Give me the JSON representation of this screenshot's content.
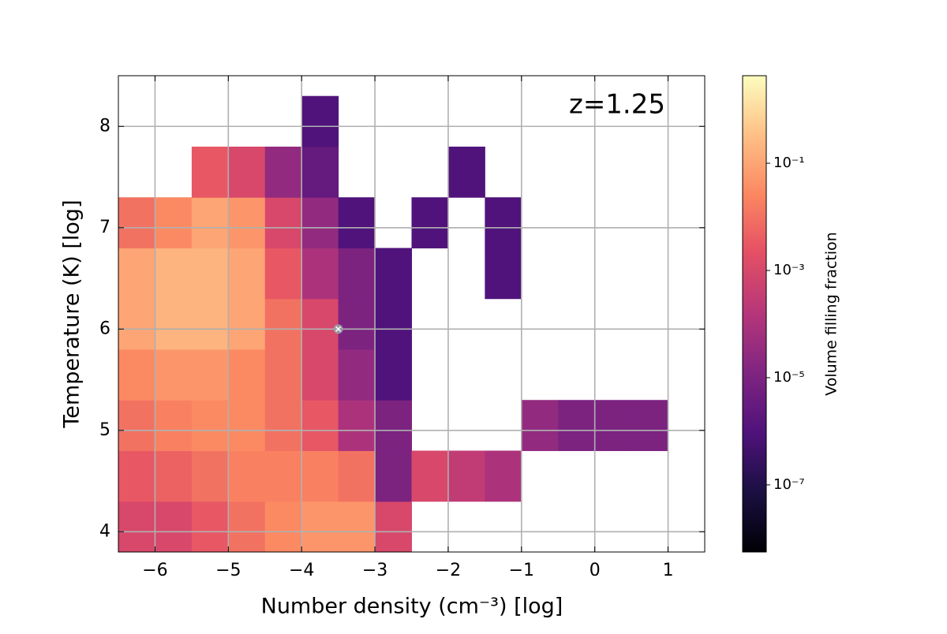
{
  "chart_data": {
    "type": "heatmap",
    "xlabel": "Number density (cm⁻³) [log]",
    "ylabel": "Temperature (K) [log]",
    "colorbar_label": "Volume filling fraction",
    "annotation": "z=1.25",
    "colormap": "magma",
    "color_scale": "log",
    "grid": true,
    "xlim": [
      -6.5,
      1.5
    ],
    "ylim": [
      3.8,
      8.5
    ],
    "xticks": [
      {
        "value": -6,
        "label": "−6"
      },
      {
        "value": -5,
        "label": "−5"
      },
      {
        "value": -4,
        "label": "−4"
      },
      {
        "value": -3,
        "label": "−3"
      },
      {
        "value": -2,
        "label": "−2"
      },
      {
        "value": -1,
        "label": "−1"
      },
      0,
      1
    ],
    "yticks": [
      4,
      5,
      6,
      7,
      8
    ],
    "clim": [
      5.6e-09,
      4.3
    ],
    "cticks": [
      {
        "value": 1e-07,
        "label": "10⁻⁷"
      },
      {
        "value": 1e-05,
        "label": "10⁻⁵"
      },
      {
        "value": 0.001,
        "label": "10⁻³"
      },
      {
        "value": 0.1,
        "label": "10⁻¹"
      }
    ],
    "x_edges": [
      -6.5,
      -6,
      -5.5,
      -5,
      -4.5,
      -4,
      -3.5,
      -3,
      -2.5,
      -2,
      -1.5,
      -1,
      -0.5,
      0,
      0.5,
      1
    ],
    "y_edges": [
      3.8,
      4.3,
      4.8,
      5.3,
      5.8,
      6.3,
      6.8,
      7.3,
      7.8,
      8.3
    ],
    "values": [
      [
        0.001,
        0.001,
        0.003,
        0.01,
        0.03,
        0.05,
        0.05,
        0.001,
        null,
        null,
        null,
        null,
        null,
        null,
        null
      ],
      [
        0.003,
        0.005,
        0.01,
        0.02,
        0.02,
        0.02,
        0.01,
        1e-05,
        0.001,
        0.0003,
        0.0001,
        null,
        null,
        null,
        null
      ],
      [
        0.01,
        0.02,
        0.03,
        0.03,
        0.01,
        0.003,
        0.0001,
        1e-05,
        null,
        null,
        null,
        3e-05,
        1e-05,
        1e-05,
        1e-05
      ],
      [
        0.03,
        0.05,
        0.05,
        0.03,
        0.01,
        0.001,
        3e-05,
        1e-06,
        null,
        null,
        null,
        null,
        null,
        null,
        null
      ],
      [
        0.1,
        0.2,
        0.2,
        0.1,
        0.01,
        0.001,
        1e-05,
        1e-06,
        null,
        null,
        null,
        null,
        null,
        null,
        null
      ],
      [
        0.1,
        0.2,
        0.2,
        0.1,
        0.003,
        0.0001,
        1e-05,
        1e-06,
        null,
        null,
        1e-06,
        null,
        null,
        null,
        null
      ],
      [
        0.01,
        0.03,
        0.1,
        0.05,
        0.001,
        3e-05,
        1e-06,
        null,
        1e-06,
        null,
        1e-06,
        null,
        null,
        null,
        null
      ],
      [
        null,
        null,
        0.003,
        0.001,
        3e-05,
        3e-06,
        null,
        null,
        null,
        1e-06,
        null,
        null,
        null,
        null,
        null
      ],
      [
        null,
        null,
        null,
        null,
        null,
        1e-06,
        null,
        null,
        null,
        null,
        null,
        null,
        null,
        null,
        null
      ]
    ],
    "marker_x": -3.5,
    "marker_y": 6,
    "marker_color": "#9aa0a6"
  }
}
